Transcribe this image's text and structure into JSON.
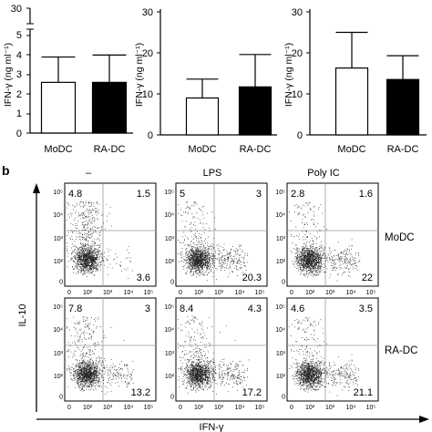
{
  "chart_data": [
    {
      "type": "bar",
      "panel": "a-left",
      "categories": [
        "MoDC",
        "RA-DC"
      ],
      "values": [
        2.6,
        2.6
      ],
      "errors": [
        1.3,
        1.4
      ],
      "bar_fills": [
        "#ffffff",
        "#000000"
      ],
      "ylabel": "IFN-γ (ng ml⁻¹)",
      "axis_break": true,
      "yticks_lower": [
        "0",
        "1",
        "2",
        "3",
        "4",
        "5"
      ],
      "yticks_upper": [
        "30"
      ],
      "ylim_lower": [
        0,
        5
      ],
      "ylim_upper": [
        20,
        30
      ]
    },
    {
      "type": "bar",
      "panel": "a-middle",
      "categories": [
        "MoDC",
        "RA-DC"
      ],
      "values": [
        9.0,
        11.7
      ],
      "errors": [
        4.6,
        7.9
      ],
      "bar_fills": [
        "#ffffff",
        "#000000"
      ],
      "ylabel": "IFN-γ (ng ml⁻¹)",
      "yticks": [
        "0",
        "10",
        "20",
        "30"
      ],
      "ylim": [
        0,
        30
      ]
    },
    {
      "type": "bar",
      "panel": "a-right",
      "categories": [
        "MoDC",
        "RA-DC"
      ],
      "values": [
        16.3,
        13.5
      ],
      "errors": [
        8.7,
        5.8
      ],
      "bar_fills": [
        "#ffffff",
        "#000000"
      ],
      "ylabel": "IFN-γ (ng ml⁻¹)",
      "yticks": [
        "0",
        "10",
        "20",
        "30"
      ],
      "ylim": [
        0,
        30
      ]
    },
    {
      "type": "scatter",
      "panel": "b",
      "panel_label": "b",
      "column_labels": [
        "–",
        "LPS",
        "Poly IC"
      ],
      "row_labels": [
        "MoDC",
        "RA-DC"
      ],
      "xlabel": "IFN-γ",
      "ylabel": "IL-10",
      "log_scale": true,
      "xticks": [
        "0",
        "10²",
        "10³",
        "10⁴",
        "10⁵"
      ],
      "yticks": [
        "0",
        "10²",
        "10³",
        "10⁴",
        "10⁵"
      ],
      "quadrant_percentages": [
        [
          {
            "ul": "4.8",
            "ur": "1.5",
            "lr": "3.6"
          },
          {
            "ul": "5",
            "ur": "3",
            "lr": "20.3"
          },
          {
            "ul": "2.8",
            "ur": "1.6",
            "lr": "22"
          }
        ],
        [
          {
            "ul": "7.8",
            "ur": "3",
            "lr": "13.2"
          },
          {
            "ul": "8.4",
            "ur": "4.3",
            "lr": "17.2"
          },
          {
            "ul": "4.6",
            "ur": "3.5",
            "lr": "21.1"
          }
        ]
      ]
    }
  ]
}
